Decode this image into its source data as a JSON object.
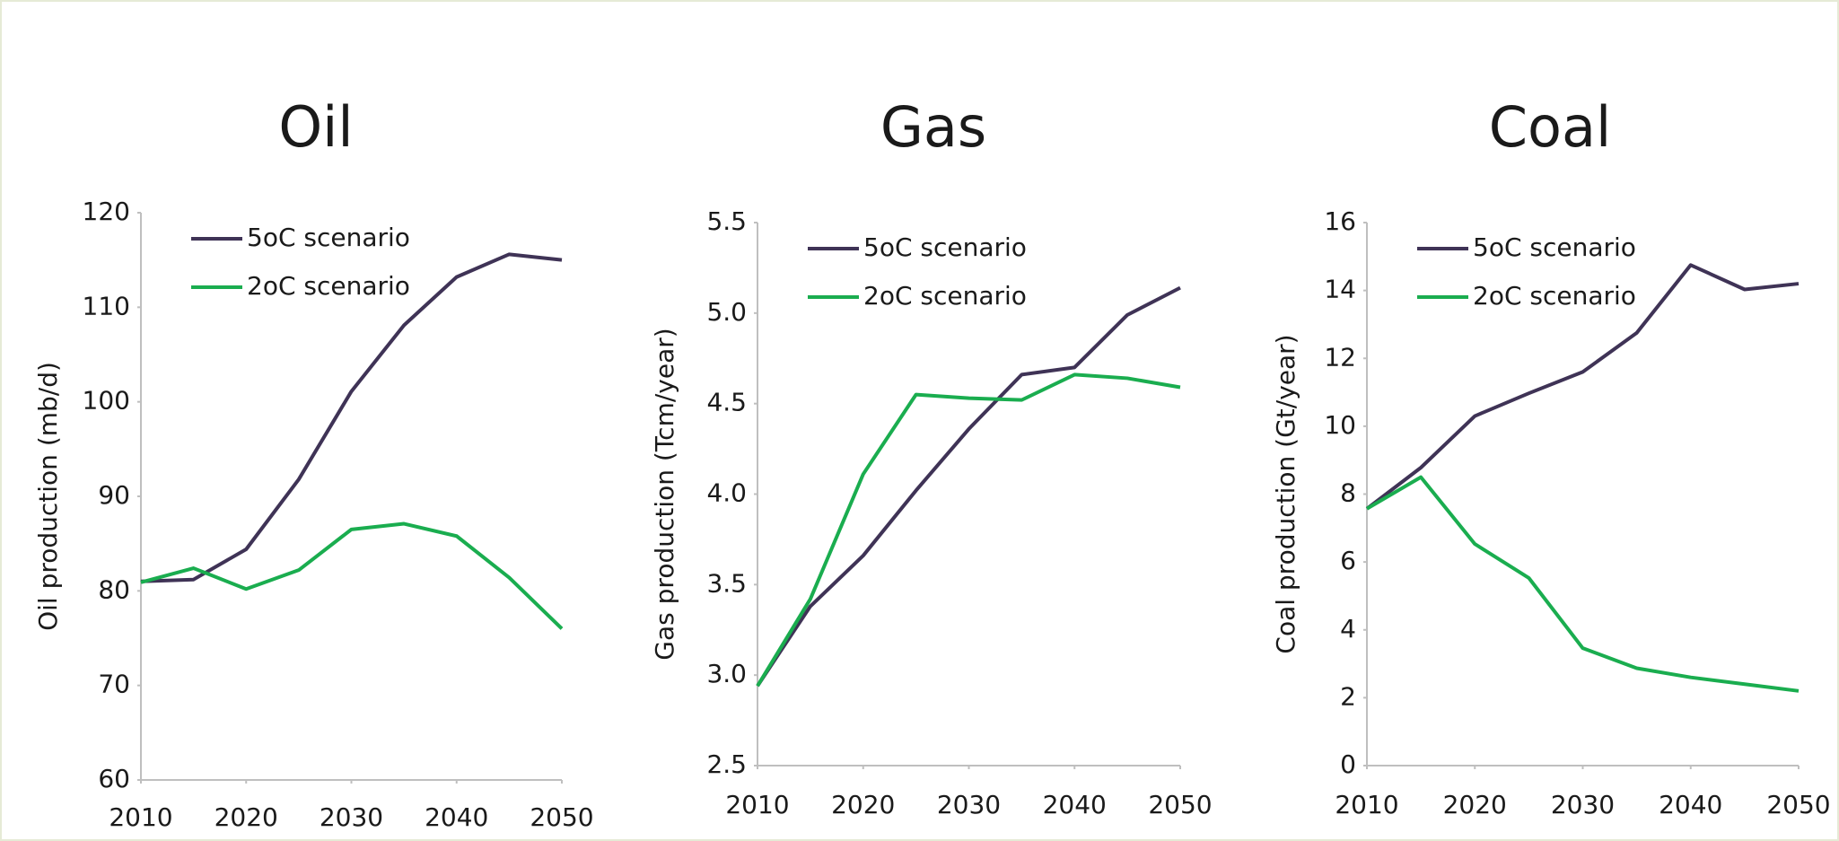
{
  "chart_data": [
    {
      "type": "line",
      "title": "Oil",
      "ylabel": "Oil production (mb/d)",
      "x": [
        2010,
        2015,
        2020,
        2025,
        2030,
        2035,
        2040,
        2045,
        2050
      ],
      "xlim": [
        2010,
        2050
      ],
      "xticks": [
        2010,
        2020,
        2030,
        2040,
        2050
      ],
      "ylim": [
        60,
        120
      ],
      "yticks": [
        60,
        70,
        80,
        90,
        100,
        110,
        120
      ],
      "legend": "upper left",
      "series": [
        {
          "name": "5oC scenario",
          "color": "#3f3356",
          "values": [
            81,
            81.2,
            84.4,
            91.8,
            101.1,
            108.1,
            113.2,
            115.6,
            115.0
          ]
        },
        {
          "name": "2oC scenario",
          "color": "#1aad4f",
          "values": [
            80.9,
            82.4,
            80.2,
            82.2,
            86.5,
            87.1,
            85.8,
            81.4,
            76.0
          ]
        }
      ]
    },
    {
      "type": "line",
      "title": "Gas",
      "ylabel": "Gas production (Tcm/year)",
      "x": [
        2010,
        2015,
        2020,
        2025,
        2030,
        2035,
        2040,
        2045,
        2050
      ],
      "xlim": [
        2010,
        2050
      ],
      "xticks": [
        2010,
        2020,
        2030,
        2040,
        2050
      ],
      "ylim": [
        2.5,
        5.5
      ],
      "yticks": [
        2.5,
        {
          "value": 3,
          "label": "3.0"
        },
        3.5,
        {
          "value": 4,
          "label": "4.0"
        },
        4.5,
        {
          "value": 5,
          "label": "5.0"
        },
        5.5
      ],
      "legend": "upper left",
      "series": [
        {
          "name": "5oC scenario",
          "color": "#3f3356",
          "values": [
            2.94,
            3.38,
            3.66,
            4.02,
            4.36,
            4.66,
            4.7,
            4.99,
            5.14
          ]
        },
        {
          "name": "2oC scenario",
          "color": "#1aad4f",
          "values": [
            2.94,
            3.42,
            4.11,
            4.55,
            4.53,
            4.52,
            4.66,
            4.64,
            4.59
          ]
        }
      ]
    },
    {
      "type": "line",
      "title": "Coal",
      "ylabel": "Coal production (Gt/year)",
      "x": [
        2010,
        2015,
        2020,
        2025,
        2030,
        2035,
        2040,
        2045,
        2050
      ],
      "xlim": [
        2010,
        2050
      ],
      "xticks": [
        2010,
        2020,
        2030,
        2040,
        2050
      ],
      "ylim": [
        0,
        16
      ],
      "yticks": [
        0,
        2,
        4,
        6,
        8,
        10,
        12,
        14,
        16
      ],
      "legend": "upper left",
      "series": [
        {
          "name": "5oC scenario",
          "color": "#3f3356",
          "values": [
            7.57,
            8.78,
            10.3,
            10.97,
            11.6,
            12.75,
            14.75,
            14.03,
            14.2
          ]
        },
        {
          "name": "2oC scenario",
          "color": "#1aad4f",
          "values": [
            7.57,
            8.5,
            6.53,
            5.53,
            3.46,
            2.87,
            2.6,
            2.4,
            2.2
          ]
        }
      ]
    }
  ]
}
